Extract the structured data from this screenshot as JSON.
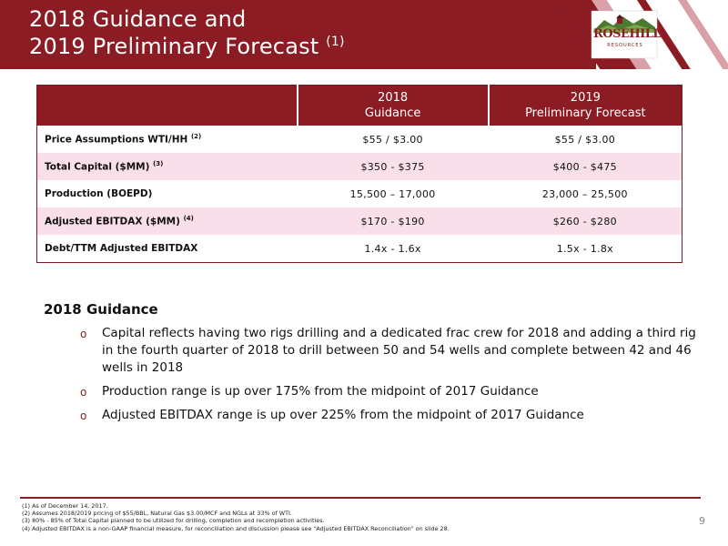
{
  "header": {
    "title_line1": "2018 Guidance and",
    "title_line2": "2019 Preliminary Forecast",
    "title_note": "(1)",
    "brand_color": "#8b1c24",
    "logo": {
      "name": "ROSEHILL",
      "sub": "RESOURCES"
    }
  },
  "table": {
    "col2_line1": "2018",
    "col2_line2": "Guidance",
    "col3_line1": "2019",
    "col3_line2": "Preliminary Forecast",
    "rows": [
      {
        "label": "Price Assumptions WTI/HH",
        "note": "(2)",
        "v2018": "$55 / $3.00",
        "v2019": "$55 / $3.00"
      },
      {
        "label": "Total Capital ($MM)",
        "note": "(3)",
        "v2018": "$350 - $375",
        "v2019": "$400 - $475"
      },
      {
        "label": "Production (BOEPD)",
        "note": "",
        "v2018": "15,500 – 17,000",
        "v2019": "23,000 – 25,500"
      },
      {
        "label": "Adjusted EBITDAX ($MM)",
        "note": "(4)",
        "v2018": "$170 - $190",
        "v2019": "$260 - $280"
      },
      {
        "label": "Debt/TTM Adjusted EBITDAX",
        "note": "",
        "v2018": "1.4x - 1.6x",
        "v2019": "1.5x - 1.8x"
      }
    ]
  },
  "section": {
    "heading": "2018 Guidance",
    "bullets": [
      "Capital reflects having two rigs drilling and a dedicated frac crew for 2018 and adding a third rig in the fourth quarter of 2018 to drill between 50 and 54 wells and complete between 42 and 46 wells in 2018",
      "Production range is up over 175% from the midpoint of 2017 Guidance",
      "Adjusted EBITDAX range is up over 225% from the midpoint of 2017 Guidance"
    ]
  },
  "footnotes": [
    "(1) As of December 14, 2017.",
    "(2) Assumes 2018/2019 pricing of $55/BBL, Natural Gas $3.00/MCF and NGLs at 33% of WTI.",
    "(3) 80% - 85% of Total Capital planned to be utilized for drilling, completion and recompletion activities.",
    "(4) Adjusted EBITDAX is a non-GAAP financial measure, for reconciliation and discussion please see \"Adjusted EBITDAX Reconciliation\" on slide 28."
  ],
  "page_number": "9"
}
